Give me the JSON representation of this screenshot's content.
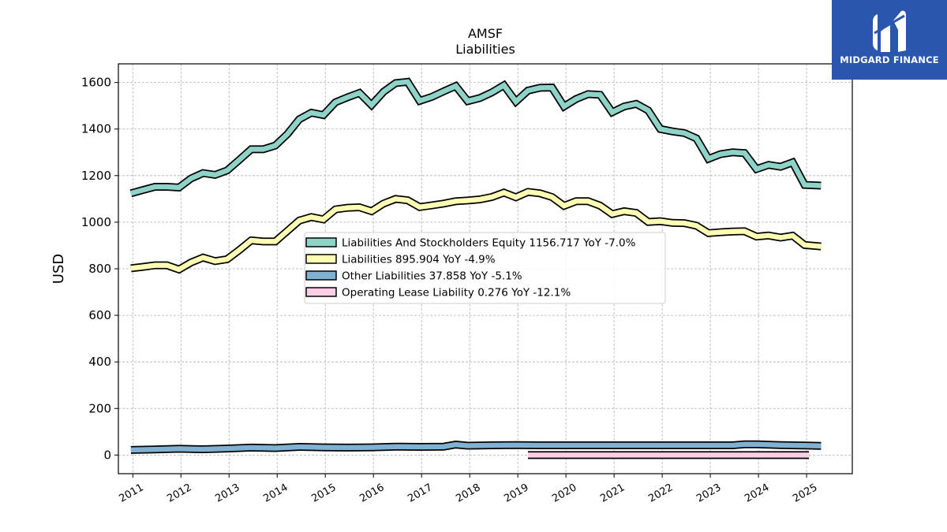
{
  "brand": {
    "name": "MIDGARD FINANCE",
    "color": "#2a57ad"
  },
  "chart_data": {
    "type": "line",
    "title": "AMSF",
    "subtitle": "Liabilities",
    "ylabel": "USD",
    "xlabel": "",
    "ylim": [
      -80,
      1680
    ],
    "xlim": [
      2010.7,
      2025.95
    ],
    "yticks": [
      0,
      200,
      400,
      600,
      800,
      1000,
      1200,
      1400,
      1600
    ],
    "xticks": [
      2011,
      2012,
      2013,
      2014,
      2015,
      2016,
      2017,
      2018,
      2019,
      2020,
      2021,
      2022,
      2023,
      2024,
      2025
    ],
    "grid": true,
    "legend_position": "center",
    "series": [
      {
        "name": "Liabilities And Stockholders Equity",
        "legend_label": "Liabilities And Stockholders Equity  1156.717 YoY -7.0%",
        "color": "#8dd3c7",
        "points": [
          [
            2010.96,
            1124
          ],
          [
            2011.21,
            1138
          ],
          [
            2011.46,
            1152
          ],
          [
            2011.71,
            1152
          ],
          [
            2011.96,
            1149
          ],
          [
            2012.21,
            1188
          ],
          [
            2012.46,
            1211
          ],
          [
            2012.71,
            1203
          ],
          [
            2012.96,
            1222
          ],
          [
            2013.21,
            1267
          ],
          [
            2013.46,
            1313
          ],
          [
            2013.71,
            1313
          ],
          [
            2013.96,
            1329
          ],
          [
            2014.21,
            1378
          ],
          [
            2014.46,
            1442
          ],
          [
            2014.71,
            1470
          ],
          [
            2014.96,
            1460
          ],
          [
            2015.21,
            1515
          ],
          [
            2015.46,
            1536
          ],
          [
            2015.71,
            1555
          ],
          [
            2015.96,
            1503
          ],
          [
            2016.21,
            1560
          ],
          [
            2016.46,
            1597
          ],
          [
            2016.71,
            1603
          ],
          [
            2016.96,
            1521
          ],
          [
            2017.21,
            1538
          ],
          [
            2017.46,
            1562
          ],
          [
            2017.71,
            1585
          ],
          [
            2017.96,
            1520
          ],
          [
            2018.21,
            1533
          ],
          [
            2018.46,
            1557
          ],
          [
            2018.71,
            1588
          ],
          [
            2018.96,
            1518
          ],
          [
            2019.21,
            1565
          ],
          [
            2019.46,
            1577
          ],
          [
            2019.71,
            1578
          ],
          [
            2019.96,
            1497
          ],
          [
            2020.21,
            1529
          ],
          [
            2020.46,
            1550
          ],
          [
            2020.71,
            1547
          ],
          [
            2020.96,
            1472
          ],
          [
            2021.21,
            1497
          ],
          [
            2021.46,
            1508
          ],
          [
            2021.71,
            1480
          ],
          [
            2021.96,
            1400
          ],
          [
            2022.21,
            1390
          ],
          [
            2022.46,
            1383
          ],
          [
            2022.71,
            1360
          ],
          [
            2022.96,
            1272
          ],
          [
            2023.21,
            1292
          ],
          [
            2023.46,
            1300
          ],
          [
            2023.71,
            1297
          ],
          [
            2023.96,
            1228
          ],
          [
            2024.21,
            1246
          ],
          [
            2024.46,
            1238
          ],
          [
            2024.71,
            1257
          ],
          [
            2024.96,
            1160
          ],
          [
            2025.3,
            1157
          ]
        ]
      },
      {
        "name": "Liabilities",
        "legend_label": "Liabilities  895.904 YoY -4.9%",
        "color": "#ffffb3",
        "points": [
          [
            2010.96,
            802
          ],
          [
            2011.21,
            808
          ],
          [
            2011.46,
            815
          ],
          [
            2011.71,
            815
          ],
          [
            2011.96,
            797
          ],
          [
            2012.21,
            827
          ],
          [
            2012.46,
            848
          ],
          [
            2012.71,
            833
          ],
          [
            2012.96,
            841
          ],
          [
            2013.21,
            880
          ],
          [
            2013.46,
            922
          ],
          [
            2013.71,
            917
          ],
          [
            2013.96,
            917
          ],
          [
            2014.21,
            962
          ],
          [
            2014.46,
            1007
          ],
          [
            2014.71,
            1022
          ],
          [
            2014.96,
            1012
          ],
          [
            2015.21,
            1055
          ],
          [
            2015.46,
            1062
          ],
          [
            2015.71,
            1064
          ],
          [
            2015.96,
            1047
          ],
          [
            2016.21,
            1080
          ],
          [
            2016.46,
            1100
          ],
          [
            2016.71,
            1094
          ],
          [
            2016.96,
            1065
          ],
          [
            2017.21,
            1072
          ],
          [
            2017.46,
            1080
          ],
          [
            2017.71,
            1090
          ],
          [
            2017.96,
            1093
          ],
          [
            2018.21,
            1098
          ],
          [
            2018.46,
            1108
          ],
          [
            2018.71,
            1127
          ],
          [
            2018.96,
            1107
          ],
          [
            2019.21,
            1130
          ],
          [
            2019.46,
            1124
          ],
          [
            2019.71,
            1108
          ],
          [
            2019.96,
            1070
          ],
          [
            2020.21,
            1090
          ],
          [
            2020.46,
            1090
          ],
          [
            2020.71,
            1071
          ],
          [
            2020.96,
            1035
          ],
          [
            2021.21,
            1047
          ],
          [
            2021.46,
            1040
          ],
          [
            2021.71,
            1001
          ],
          [
            2021.96,
            1004
          ],
          [
            2022.21,
            997
          ],
          [
            2022.46,
            996
          ],
          [
            2022.71,
            985
          ],
          [
            2022.96,
            953
          ],
          [
            2023.21,
            957
          ],
          [
            2023.46,
            960
          ],
          [
            2023.71,
            961
          ],
          [
            2023.96,
            938
          ],
          [
            2024.21,
            943
          ],
          [
            2024.46,
            934
          ],
          [
            2024.71,
            942
          ],
          [
            2024.96,
            902
          ],
          [
            2025.3,
            896
          ]
        ]
      },
      {
        "name": "Other Liabilities",
        "legend_label": "Other Liabilities  37.858 YoY -5.1%",
        "color": "#80b1d3",
        "points": [
          [
            2010.96,
            22
          ],
          [
            2011.46,
            24
          ],
          [
            2011.96,
            27
          ],
          [
            2012.46,
            25
          ],
          [
            2012.96,
            28
          ],
          [
            2013.46,
            32
          ],
          [
            2013.96,
            30
          ],
          [
            2014.46,
            35
          ],
          [
            2014.96,
            33
          ],
          [
            2015.46,
            32
          ],
          [
            2015.96,
            33
          ],
          [
            2016.46,
            36
          ],
          [
            2016.96,
            35
          ],
          [
            2017.46,
            36
          ],
          [
            2017.71,
            45
          ],
          [
            2017.96,
            40
          ],
          [
            2018.46,
            42
          ],
          [
            2018.96,
            43
          ],
          [
            2019.46,
            42
          ],
          [
            2019.96,
            42
          ],
          [
            2020.46,
            42
          ],
          [
            2020.96,
            42
          ],
          [
            2021.46,
            42
          ],
          [
            2021.96,
            42
          ],
          [
            2022.46,
            42
          ],
          [
            2022.96,
            42
          ],
          [
            2023.46,
            42
          ],
          [
            2023.71,
            46
          ],
          [
            2023.96,
            46
          ],
          [
            2024.46,
            43
          ],
          [
            2024.96,
            41
          ],
          [
            2025.3,
            39
          ]
        ]
      },
      {
        "name": "Operating Lease Liability",
        "legend_label": "Operating Lease Liability  0.276 YoY -12.1%",
        "color": "#fccde5",
        "points": [
          [
            2019.21,
            0
          ],
          [
            2019.71,
            0
          ],
          [
            2020.21,
            0
          ],
          [
            2020.71,
            0
          ],
          [
            2021.21,
            0
          ],
          [
            2021.71,
            0
          ],
          [
            2022.21,
            0
          ],
          [
            2022.71,
            0
          ],
          [
            2023.21,
            0
          ],
          [
            2023.71,
            0
          ],
          [
            2024.21,
            0
          ],
          [
            2024.71,
            0
          ],
          [
            2025.05,
            0
          ]
        ]
      }
    ]
  }
}
